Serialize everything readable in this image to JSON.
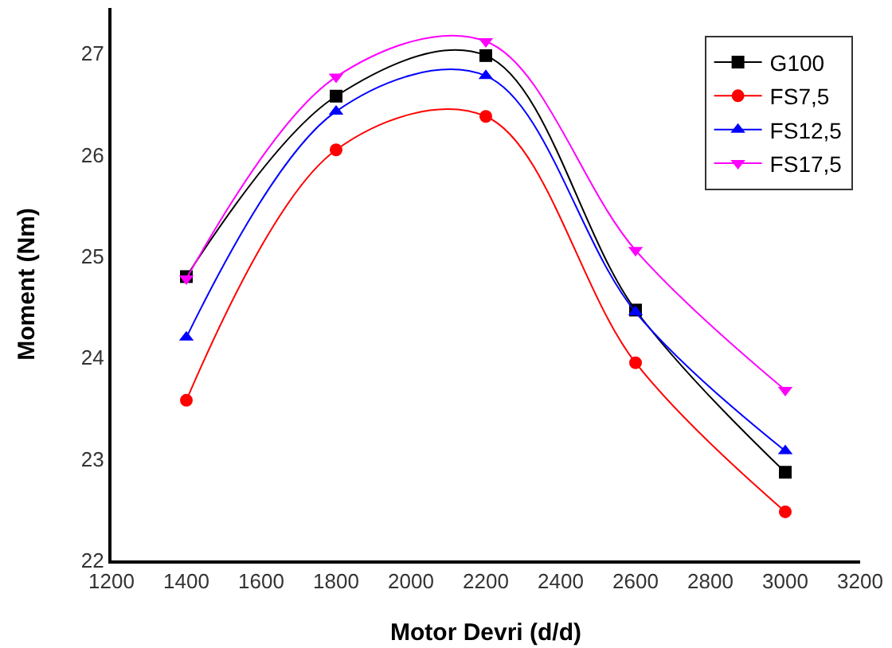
{
  "chart_data": {
    "type": "line",
    "xlabel": "Motor Devri (d/d)",
    "ylabel": "Moment (Nm)",
    "x": [
      1400,
      1800,
      2200,
      2600,
      3000
    ],
    "series": [
      {
        "name": "G100",
        "color": "#000000",
        "marker": "square",
        "values": [
          24.8,
          26.58,
          26.98,
          24.47,
          22.87
        ]
      },
      {
        "name": "FS7,5",
        "color": "#ff0000",
        "marker": "circle",
        "values": [
          23.58,
          26.05,
          26.38,
          23.95,
          22.48
        ]
      },
      {
        "name": "FS12,5",
        "color": "#0000ff",
        "marker": "triangle",
        "values": [
          24.2,
          26.43,
          26.78,
          24.45,
          23.08
        ]
      },
      {
        "name": "FS17,5",
        "color": "#ff00ff",
        "marker": "triangle-down",
        "values": [
          24.78,
          26.77,
          27.12,
          25.06,
          23.68
        ]
      }
    ],
    "xlim": [
      1200,
      3200
    ],
    "xticks": [
      1200,
      1400,
      1600,
      1800,
      2000,
      2200,
      2400,
      2600,
      2800,
      3000,
      3200
    ],
    "ylim": [
      22,
      27.45
    ],
    "yticks": [
      22,
      23,
      24,
      25,
      26,
      27
    ],
    "grid": false,
    "legend": "top right",
    "line_style": "solid"
  }
}
